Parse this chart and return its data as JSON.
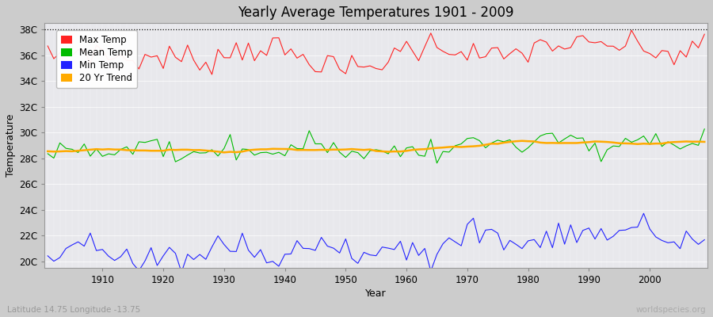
{
  "title": "Yearly Average Temperatures 1901 - 2009",
  "xlabel": "Year",
  "ylabel": "Temperature",
  "lat_lon_label": "Latitude 14.75 Longitude -13.75",
  "watermark": "worldspecies.org",
  "year_start": 1901,
  "year_end": 2009,
  "yticks": [
    20,
    22,
    24,
    26,
    28,
    30,
    32,
    34,
    36,
    38
  ],
  "ytick_labels": [
    "20C",
    "22C",
    "24C",
    "26C",
    "28C",
    "30C",
    "32C",
    "34C",
    "36C",
    "38C"
  ],
  "ylim": [
    19.5,
    38.5
  ],
  "xticks": [
    1910,
    1920,
    1930,
    1940,
    1950,
    1960,
    1970,
    1980,
    1990,
    2000
  ],
  "fig_bg_color": "#cccccc",
  "plot_bg_color": "#e8e8ec",
  "max_temp_color": "#ff2222",
  "mean_temp_color": "#00bb00",
  "min_temp_color": "#2222ff",
  "trend_color": "#ffaa00",
  "dotted_line_y": 38,
  "legend_labels": [
    "Max Temp",
    "Mean Temp",
    "Min Temp",
    "20 Yr Trend"
  ]
}
